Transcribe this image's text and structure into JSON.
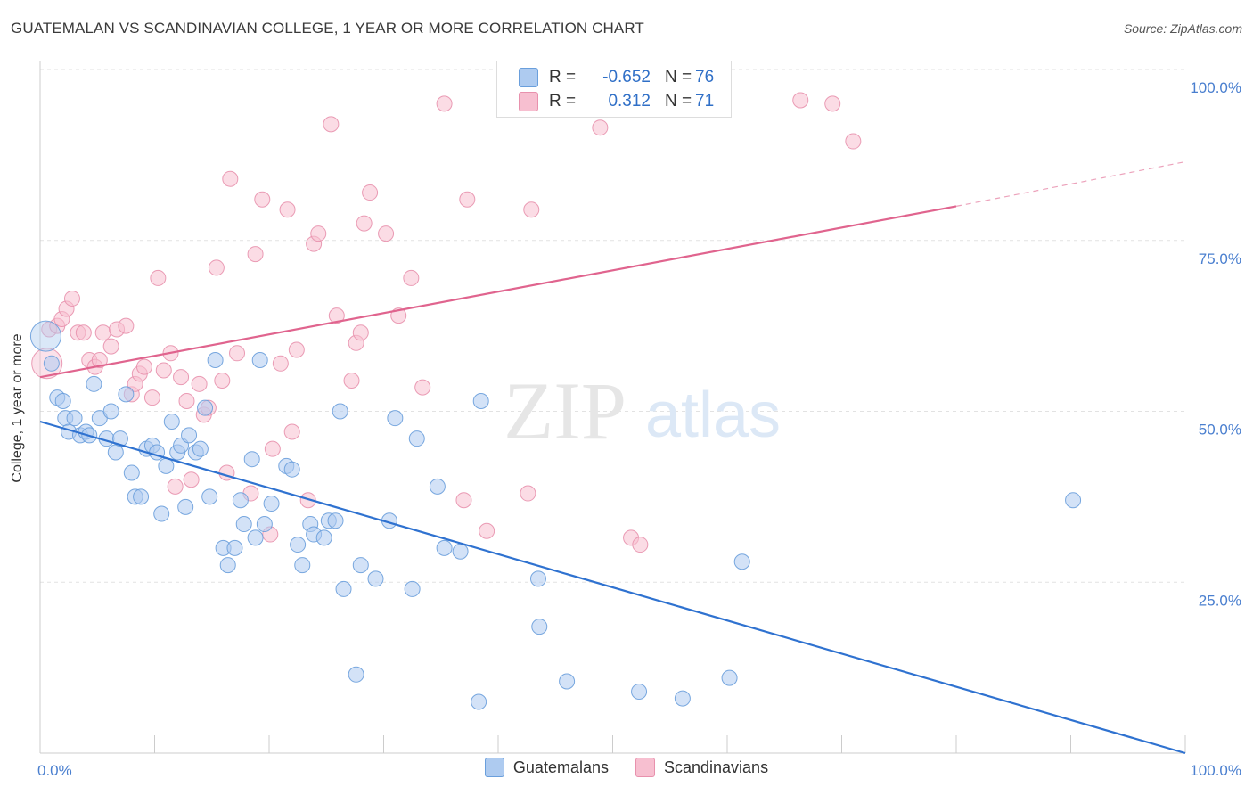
{
  "header": {
    "title": "GUATEMALAN VS SCANDINAVIAN COLLEGE, 1 YEAR OR MORE CORRELATION CHART",
    "source": "Source: ZipAtlas.com"
  },
  "watermark": {
    "zip": "ZIP",
    "atlas": "atlas"
  },
  "legend_box": {
    "rows": [
      {
        "r_label": "R =",
        "r_value": "-0.652",
        "n_label": "N =",
        "n_value": "76",
        "color": "#aecbf0"
      },
      {
        "r_label": "R =",
        "r_value": "0.312",
        "n_label": "N =",
        "n_value": "71",
        "color": "#f7bfd0"
      }
    ]
  },
  "legend_bottom": {
    "items": [
      {
        "label": "Guatemalans",
        "color": "#aecbf0"
      },
      {
        "label": "Scandinavians",
        "color": "#f7bfd0"
      }
    ]
  },
  "chart_data": {
    "type": "scatter",
    "title": "GUATEMALAN VS SCANDINAVIAN COLLEGE, 1 YEAR OR MORE CORRELATION CHART",
    "xlabel": "",
    "ylabel": "College, 1 year or more",
    "xlim": [
      0,
      100
    ],
    "ylim": [
      0,
      100
    ],
    "x_tick_labels": [
      "0.0%",
      "100.0%"
    ],
    "y_tick_labels": [
      "25.0%",
      "50.0%",
      "75.0%",
      "100.0%"
    ],
    "y_ticks": [
      25,
      50,
      75,
      100
    ],
    "grid": true,
    "colors": {
      "guatemalans_fill": "#aecbf0",
      "guatemalans_stroke": "#6a9fdc",
      "guatemalans_line": "#2f72d0",
      "scandinavians_fill": "#f7bfd0",
      "scandinavians_stroke": "#e891ad",
      "scandinavians_line": "#e0648e",
      "tick_label": "#4a7fcf"
    },
    "series": [
      {
        "name": "Guatemalans",
        "r": -0.652,
        "n": 76,
        "trend": {
          "x": [
            0,
            100
          ],
          "y": [
            48.5,
            0
          ]
        },
        "points": [
          {
            "x": 0.5,
            "y": 61,
            "big": true
          },
          {
            "x": 1,
            "y": 57
          },
          {
            "x": 1.5,
            "y": 52
          },
          {
            "x": 2,
            "y": 51.5
          },
          {
            "x": 2.2,
            "y": 49
          },
          {
            "x": 2.5,
            "y": 47
          },
          {
            "x": 3,
            "y": 49
          },
          {
            "x": 3.5,
            "y": 46.5
          },
          {
            "x": 4,
            "y": 47
          },
          {
            "x": 4.3,
            "y": 46.5
          },
          {
            "x": 4.7,
            "y": 54
          },
          {
            "x": 5.2,
            "y": 49
          },
          {
            "x": 5.8,
            "y": 46
          },
          {
            "x": 6.2,
            "y": 50
          },
          {
            "x": 6.6,
            "y": 44
          },
          {
            "x": 7,
            "y": 46
          },
          {
            "x": 7.5,
            "y": 52.5
          },
          {
            "x": 8,
            "y": 41
          },
          {
            "x": 8.3,
            "y": 37.5
          },
          {
            "x": 8.8,
            "y": 37.5
          },
          {
            "x": 9.3,
            "y": 44.5
          },
          {
            "x": 9.8,
            "y": 45
          },
          {
            "x": 10.2,
            "y": 44
          },
          {
            "x": 10.6,
            "y": 35
          },
          {
            "x": 11,
            "y": 42
          },
          {
            "x": 11.5,
            "y": 48.5
          },
          {
            "x": 12,
            "y": 44
          },
          {
            "x": 12.3,
            "y": 45
          },
          {
            "x": 12.7,
            "y": 36
          },
          {
            "x": 13,
            "y": 46.5
          },
          {
            "x": 13.6,
            "y": 44
          },
          {
            "x": 14,
            "y": 44.5
          },
          {
            "x": 14.4,
            "y": 50.5
          },
          {
            "x": 14.8,
            "y": 37.5
          },
          {
            "x": 15.3,
            "y": 57.5
          },
          {
            "x": 16,
            "y": 30
          },
          {
            "x": 16.4,
            "y": 27.5
          },
          {
            "x": 17,
            "y": 30
          },
          {
            "x": 17.5,
            "y": 37
          },
          {
            "x": 17.8,
            "y": 33.5
          },
          {
            "x": 18.5,
            "y": 43
          },
          {
            "x": 18.8,
            "y": 31.5
          },
          {
            "x": 19.2,
            "y": 57.5
          },
          {
            "x": 19.6,
            "y": 33.5
          },
          {
            "x": 20.2,
            "y": 36.5
          },
          {
            "x": 21.5,
            "y": 42
          },
          {
            "x": 22,
            "y": 41.5
          },
          {
            "x": 22.5,
            "y": 30.5
          },
          {
            "x": 22.9,
            "y": 27.5
          },
          {
            "x": 23.6,
            "y": 33.5
          },
          {
            "x": 23.9,
            "y": 32
          },
          {
            "x": 24.8,
            "y": 31.5
          },
          {
            "x": 25.2,
            "y": 34
          },
          {
            "x": 25.8,
            "y": 34
          },
          {
            "x": 26.2,
            "y": 50
          },
          {
            "x": 26.5,
            "y": 24
          },
          {
            "x": 27.6,
            "y": 11.5
          },
          {
            "x": 28,
            "y": 27.5
          },
          {
            "x": 29.3,
            "y": 25.5
          },
          {
            "x": 30.5,
            "y": 34
          },
          {
            "x": 31,
            "y": 49
          },
          {
            "x": 32.5,
            "y": 24
          },
          {
            "x": 32.9,
            "y": 46
          },
          {
            "x": 34.7,
            "y": 39
          },
          {
            "x": 35.3,
            "y": 30
          },
          {
            "x": 36.7,
            "y": 29.5
          },
          {
            "x": 38.3,
            "y": 7.5
          },
          {
            "x": 38.5,
            "y": 51.5
          },
          {
            "x": 43.5,
            "y": 25.5
          },
          {
            "x": 43.6,
            "y": 18.5
          },
          {
            "x": 46,
            "y": 10.5
          },
          {
            "x": 52.3,
            "y": 9
          },
          {
            "x": 56.1,
            "y": 8
          },
          {
            "x": 61.3,
            "y": 28
          },
          {
            "x": 60.2,
            "y": 11
          },
          {
            "x": 90.2,
            "y": 37
          }
        ]
      },
      {
        "name": "Scandinavians",
        "r": 0.312,
        "n": 71,
        "trend": {
          "x": [
            0,
            80
          ],
          "y": [
            55,
            80
          ],
          "dash_x": [
            80,
            100
          ],
          "dash_y": [
            80,
            86.5
          ]
        },
        "points": [
          {
            "x": 0.6,
            "y": 57,
            "big": true
          },
          {
            "x": 0.8,
            "y": 62
          },
          {
            "x": 1.5,
            "y": 62.5
          },
          {
            "x": 1.9,
            "y": 63.5
          },
          {
            "x": 2.3,
            "y": 65
          },
          {
            "x": 2.8,
            "y": 66.5
          },
          {
            "x": 3.3,
            "y": 61.5
          },
          {
            "x": 3.8,
            "y": 61.5
          },
          {
            "x": 4.3,
            "y": 57.5
          },
          {
            "x": 4.8,
            "y": 56.5
          },
          {
            "x": 5.2,
            "y": 57.5
          },
          {
            "x": 5.5,
            "y": 61.5
          },
          {
            "x": 6.2,
            "y": 59.5
          },
          {
            "x": 6.7,
            "y": 62
          },
          {
            "x": 7.5,
            "y": 62.5
          },
          {
            "x": 8,
            "y": 52.5
          },
          {
            "x": 8.3,
            "y": 54
          },
          {
            "x": 8.7,
            "y": 55.5
          },
          {
            "x": 9.1,
            "y": 56.5
          },
          {
            "x": 9.8,
            "y": 52
          },
          {
            "x": 10.3,
            "y": 69.5
          },
          {
            "x": 10.8,
            "y": 56
          },
          {
            "x": 11.4,
            "y": 58.5
          },
          {
            "x": 11.8,
            "y": 39
          },
          {
            "x": 12.3,
            "y": 55
          },
          {
            "x": 12.8,
            "y": 51.5
          },
          {
            "x": 13.2,
            "y": 40
          },
          {
            "x": 13.9,
            "y": 54
          },
          {
            "x": 14.3,
            "y": 49.5
          },
          {
            "x": 14.7,
            "y": 50.5
          },
          {
            "x": 15.4,
            "y": 71
          },
          {
            "x": 15.9,
            "y": 54.5
          },
          {
            "x": 16.3,
            "y": 41
          },
          {
            "x": 16.6,
            "y": 84
          },
          {
            "x": 17.2,
            "y": 58.5
          },
          {
            "x": 18.4,
            "y": 38
          },
          {
            "x": 18.8,
            "y": 73
          },
          {
            "x": 19.4,
            "y": 81
          },
          {
            "x": 20.1,
            "y": 32
          },
          {
            "x": 20.3,
            "y": 44.5
          },
          {
            "x": 21,
            "y": 57
          },
          {
            "x": 21.6,
            "y": 79.5
          },
          {
            "x": 22,
            "y": 47
          },
          {
            "x": 22.4,
            "y": 59
          },
          {
            "x": 23.4,
            "y": 37
          },
          {
            "x": 23.9,
            "y": 74.5
          },
          {
            "x": 24.3,
            "y": 76
          },
          {
            "x": 25.4,
            "y": 92
          },
          {
            "x": 25.9,
            "y": 64
          },
          {
            "x": 27.2,
            "y": 54.5
          },
          {
            "x": 27.6,
            "y": 60
          },
          {
            "x": 28,
            "y": 61.5
          },
          {
            "x": 28.3,
            "y": 77.5
          },
          {
            "x": 28.8,
            "y": 82
          },
          {
            "x": 30.2,
            "y": 76
          },
          {
            "x": 31.3,
            "y": 64
          },
          {
            "x": 32.4,
            "y": 69.5
          },
          {
            "x": 33.4,
            "y": 53.5
          },
          {
            "x": 35.3,
            "y": 95
          },
          {
            "x": 37,
            "y": 37
          },
          {
            "x": 37.3,
            "y": 81
          },
          {
            "x": 39,
            "y": 32.5
          },
          {
            "x": 42.6,
            "y": 38
          },
          {
            "x": 42.9,
            "y": 79.5
          },
          {
            "x": 47.3,
            "y": 100
          },
          {
            "x": 48.9,
            "y": 91.5
          },
          {
            "x": 51.6,
            "y": 31.5
          },
          {
            "x": 52.4,
            "y": 30.5
          },
          {
            "x": 66.4,
            "y": 95.5
          },
          {
            "x": 69.2,
            "y": 95
          },
          {
            "x": 71,
            "y": 89.5
          }
        ]
      }
    ]
  }
}
